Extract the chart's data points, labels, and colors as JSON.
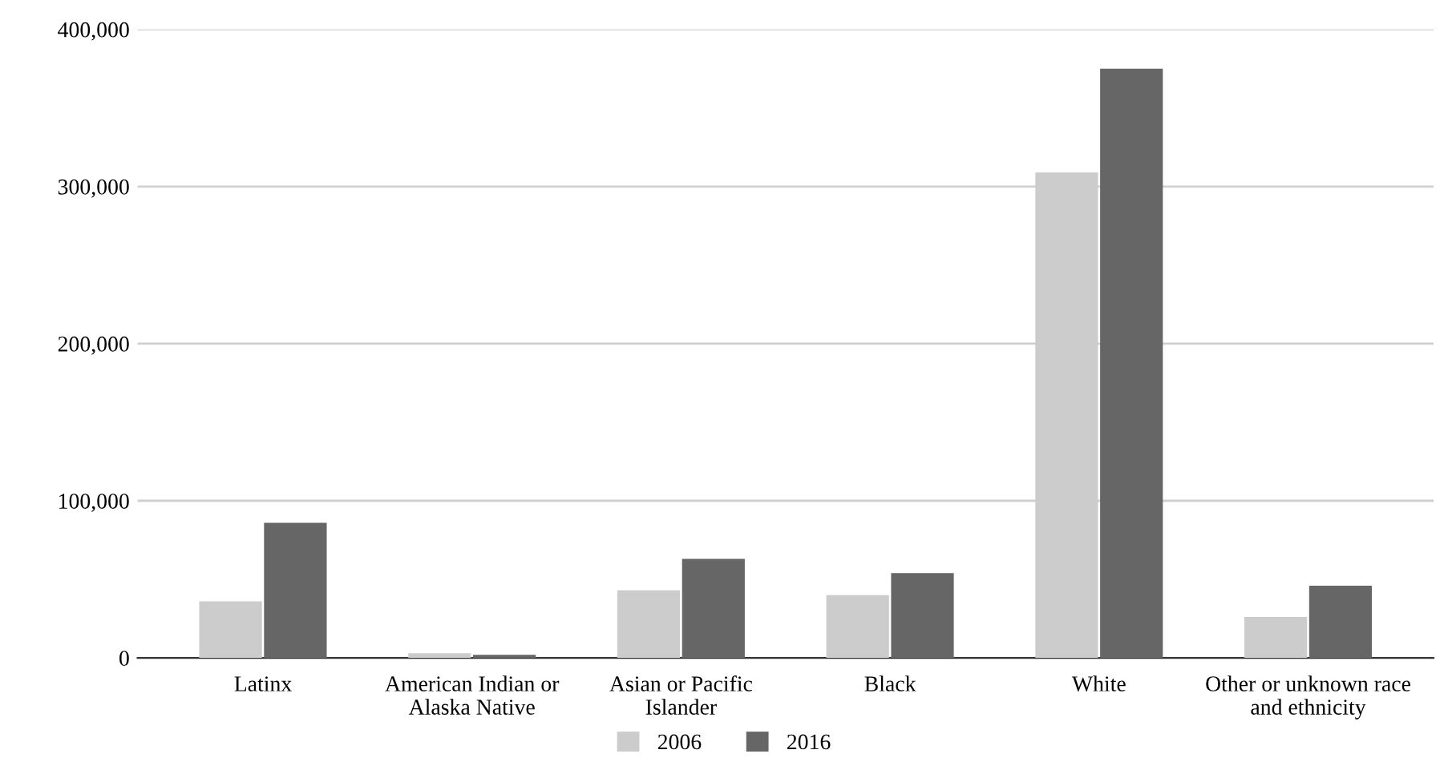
{
  "chart_data": {
    "type": "bar",
    "categories": [
      "Latinx",
      "American Indian or\nAlaska Native",
      "Asian or Pacific\nIslander",
      "Black",
      "White",
      "Other or unknown race\nand ethnicity"
    ],
    "series": [
      {
        "name": "2006",
        "color": "#cccccc",
        "values": [
          36000,
          3000,
          43000,
          40000,
          309000,
          26000
        ]
      },
      {
        "name": "2016",
        "color": "#666666",
        "values": [
          86000,
          2000,
          63000,
          54000,
          375000,
          46000
        ]
      }
    ],
    "ylim": [
      0,
      400000
    ],
    "yticks": [
      {
        "value": 0,
        "label": "0"
      },
      {
        "value": 100000,
        "label": "100,000"
      },
      {
        "value": 200000,
        "label": "200,000"
      },
      {
        "value": 300000,
        "label": "300,000"
      },
      {
        "value": 400000,
        "label": "400,000"
      }
    ],
    "grid": "y",
    "legend": "bottom"
  }
}
